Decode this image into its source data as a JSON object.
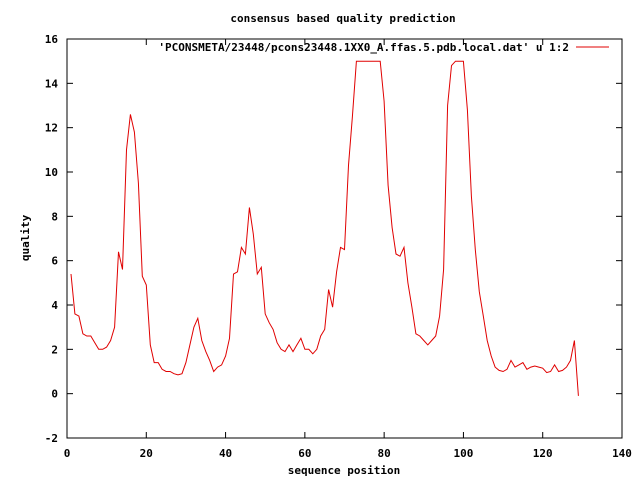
{
  "chart_data": {
    "type": "line",
    "title": "consensus based quality prediction",
    "xlabel": "sequence position",
    "ylabel": "quality",
    "xlim": [
      0,
      140
    ],
    "ylim": [
      -2,
      16
    ],
    "x_ticks": [
      0,
      20,
      40,
      60,
      80,
      100,
      120,
      140
    ],
    "y_ticks": [
      -2,
      0,
      2,
      4,
      6,
      8,
      10,
      12,
      14,
      16
    ],
    "grid": false,
    "legend_position": "top-right",
    "series": [
      {
        "name": "'PCONSMETA/23448/pcons23448.1XX0_A.ffas.5.pdb.local.dat' u 1:2",
        "color": "#e00000",
        "x": [
          1,
          2,
          3,
          4,
          5,
          6,
          7,
          8,
          9,
          10,
          11,
          12,
          13,
          14,
          15,
          16,
          17,
          18,
          19,
          20,
          21,
          22,
          23,
          24,
          25,
          26,
          27,
          28,
          29,
          30,
          31,
          32,
          33,
          34,
          35,
          36,
          37,
          38,
          39,
          40,
          41,
          42,
          43,
          44,
          45,
          46,
          47,
          48,
          49,
          50,
          51,
          52,
          53,
          54,
          55,
          56,
          57,
          58,
          59,
          60,
          61,
          62,
          63,
          64,
          65,
          66,
          67,
          68,
          69,
          70,
          71,
          72,
          73,
          74,
          75,
          76,
          77,
          78,
          79,
          80,
          81,
          82,
          83,
          84,
          85,
          86,
          87,
          88,
          89,
          90,
          91,
          92,
          93,
          94,
          95,
          96,
          97,
          98,
          99,
          100,
          101,
          102,
          103,
          104,
          105,
          106,
          107,
          108,
          109,
          110,
          111,
          112,
          113,
          114,
          115,
          116,
          117,
          118,
          119,
          120,
          121,
          122,
          123,
          124,
          125,
          126,
          127,
          128,
          129
        ],
        "y": [
          5.4,
          3.6,
          3.5,
          2.7,
          2.6,
          2.6,
          2.3,
          2.0,
          2.0,
          2.1,
          2.4,
          3.0,
          6.4,
          5.6,
          11.0,
          12.6,
          11.8,
          9.5,
          5.3,
          4.9,
          2.2,
          1.4,
          1.4,
          1.1,
          1.0,
          1.0,
          0.9,
          0.85,
          0.9,
          1.4,
          2.2,
          3.0,
          3.4,
          2.4,
          1.9,
          1.5,
          1.0,
          1.2,
          1.3,
          1.7,
          2.5,
          5.4,
          5.5,
          6.6,
          6.3,
          8.4,
          7.2,
          5.4,
          5.7,
          3.6,
          3.2,
          2.9,
          2.3,
          2.0,
          1.9,
          2.2,
          1.9,
          2.2,
          2.5,
          2.0,
          2.0,
          1.8,
          2.0,
          2.6,
          2.9,
          4.7,
          3.9,
          5.5,
          6.6,
          6.5,
          10.3,
          12.5,
          15.0,
          15.0,
          15.0,
          15.0,
          15.0,
          15.0,
          15.0,
          13.2,
          9.4,
          7.5,
          6.3,
          6.2,
          6.6,
          5.0,
          3.9,
          2.7,
          2.6,
          2.4,
          2.2,
          2.4,
          2.6,
          3.5,
          5.6,
          13.0,
          14.8,
          15.0,
          15.0,
          15.0,
          12.8,
          8.9,
          6.5,
          4.6,
          3.5,
          2.4,
          1.7,
          1.2,
          1.05,
          1.0,
          1.1,
          1.5,
          1.2,
          1.3,
          1.4,
          1.1,
          1.2,
          1.25,
          1.2,
          1.15,
          0.95,
          1.0,
          1.3,
          1.0,
          1.05,
          1.2,
          1.5,
          2.4,
          -0.1
        ]
      }
    ]
  }
}
